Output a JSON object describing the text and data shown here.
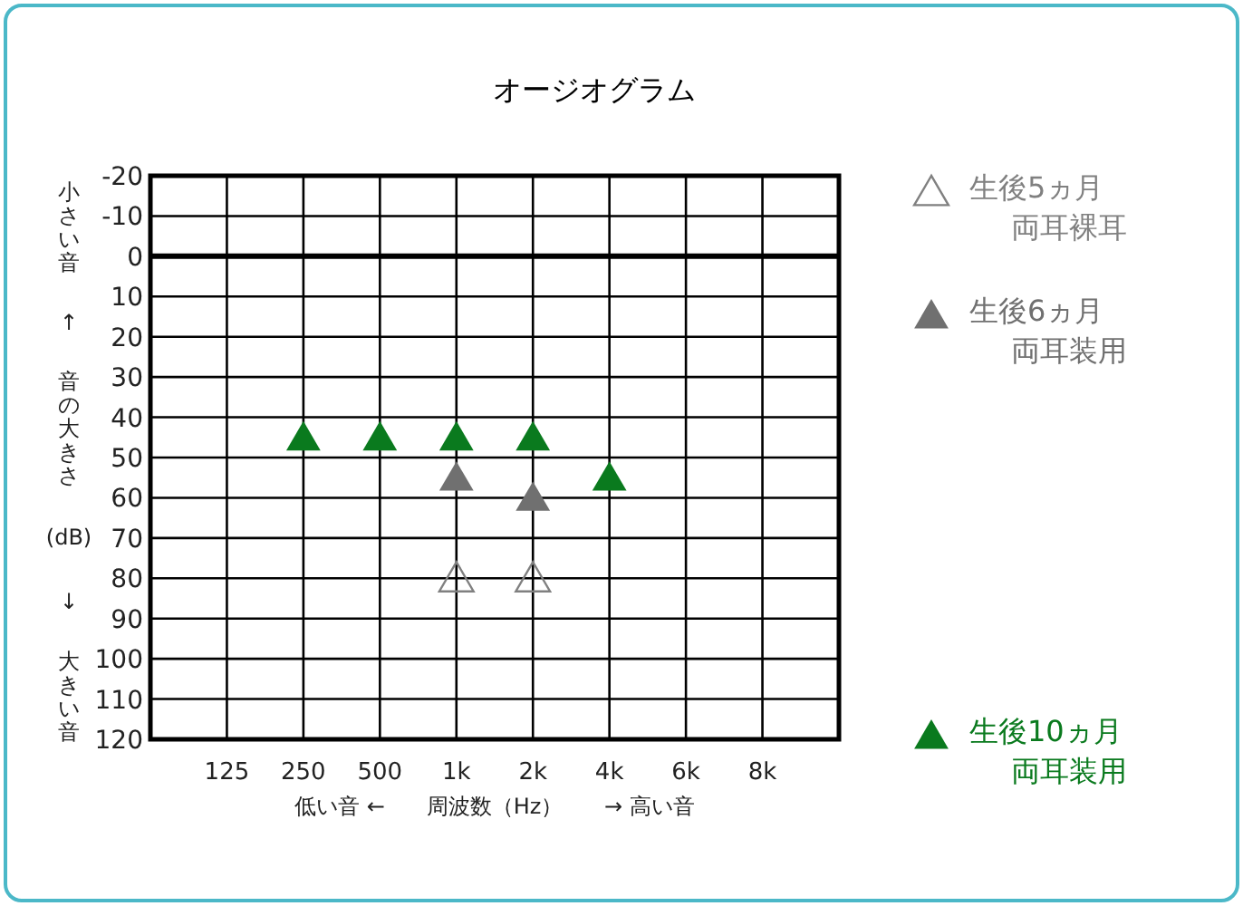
{
  "chart_data": {
    "type": "scatter",
    "title": "オージオグラム",
    "xlabel": "低い音 ←      周波数（Hz）      → 高い音",
    "ylabel": "小さい音\n↑\n音の大きさ\n(dB)\n↓\n大きい音",
    "categories": [
      "125",
      "250",
      "500",
      "1k",
      "2k",
      "4k",
      "6k",
      "8k"
    ],
    "series": [
      {
        "name": "生後5ヵ月両耳裸耳",
        "color": "#808080",
        "marker": "triangle-open",
        "values": [
          null,
          null,
          null,
          80,
          80,
          null,
          null,
          null
        ]
      },
      {
        "name": "生後6ヵ月両耳装用",
        "color": "#707070",
        "values": [
          null,
          null,
          null,
          55,
          60,
          null,
          null,
          null
        ]
      },
      {
        "name": "生後10ヵ月両耳装用",
        "color": "#0a7a1e",
        "values": [
          null,
          45,
          45,
          45,
          45,
          55,
          null,
          null
        ]
      }
    ],
    "ylim": [
      120,
      -20
    ],
    "yticks": [
      -20,
      -10,
      0,
      10,
      20,
      30,
      40,
      50,
      60,
      70,
      80,
      90,
      100,
      110,
      120
    ],
    "ref_lines": [
      {
        "axis": "y",
        "value": 0
      }
    ],
    "grid": true,
    "legend": "right",
    "marker": "triangle"
  }
}
